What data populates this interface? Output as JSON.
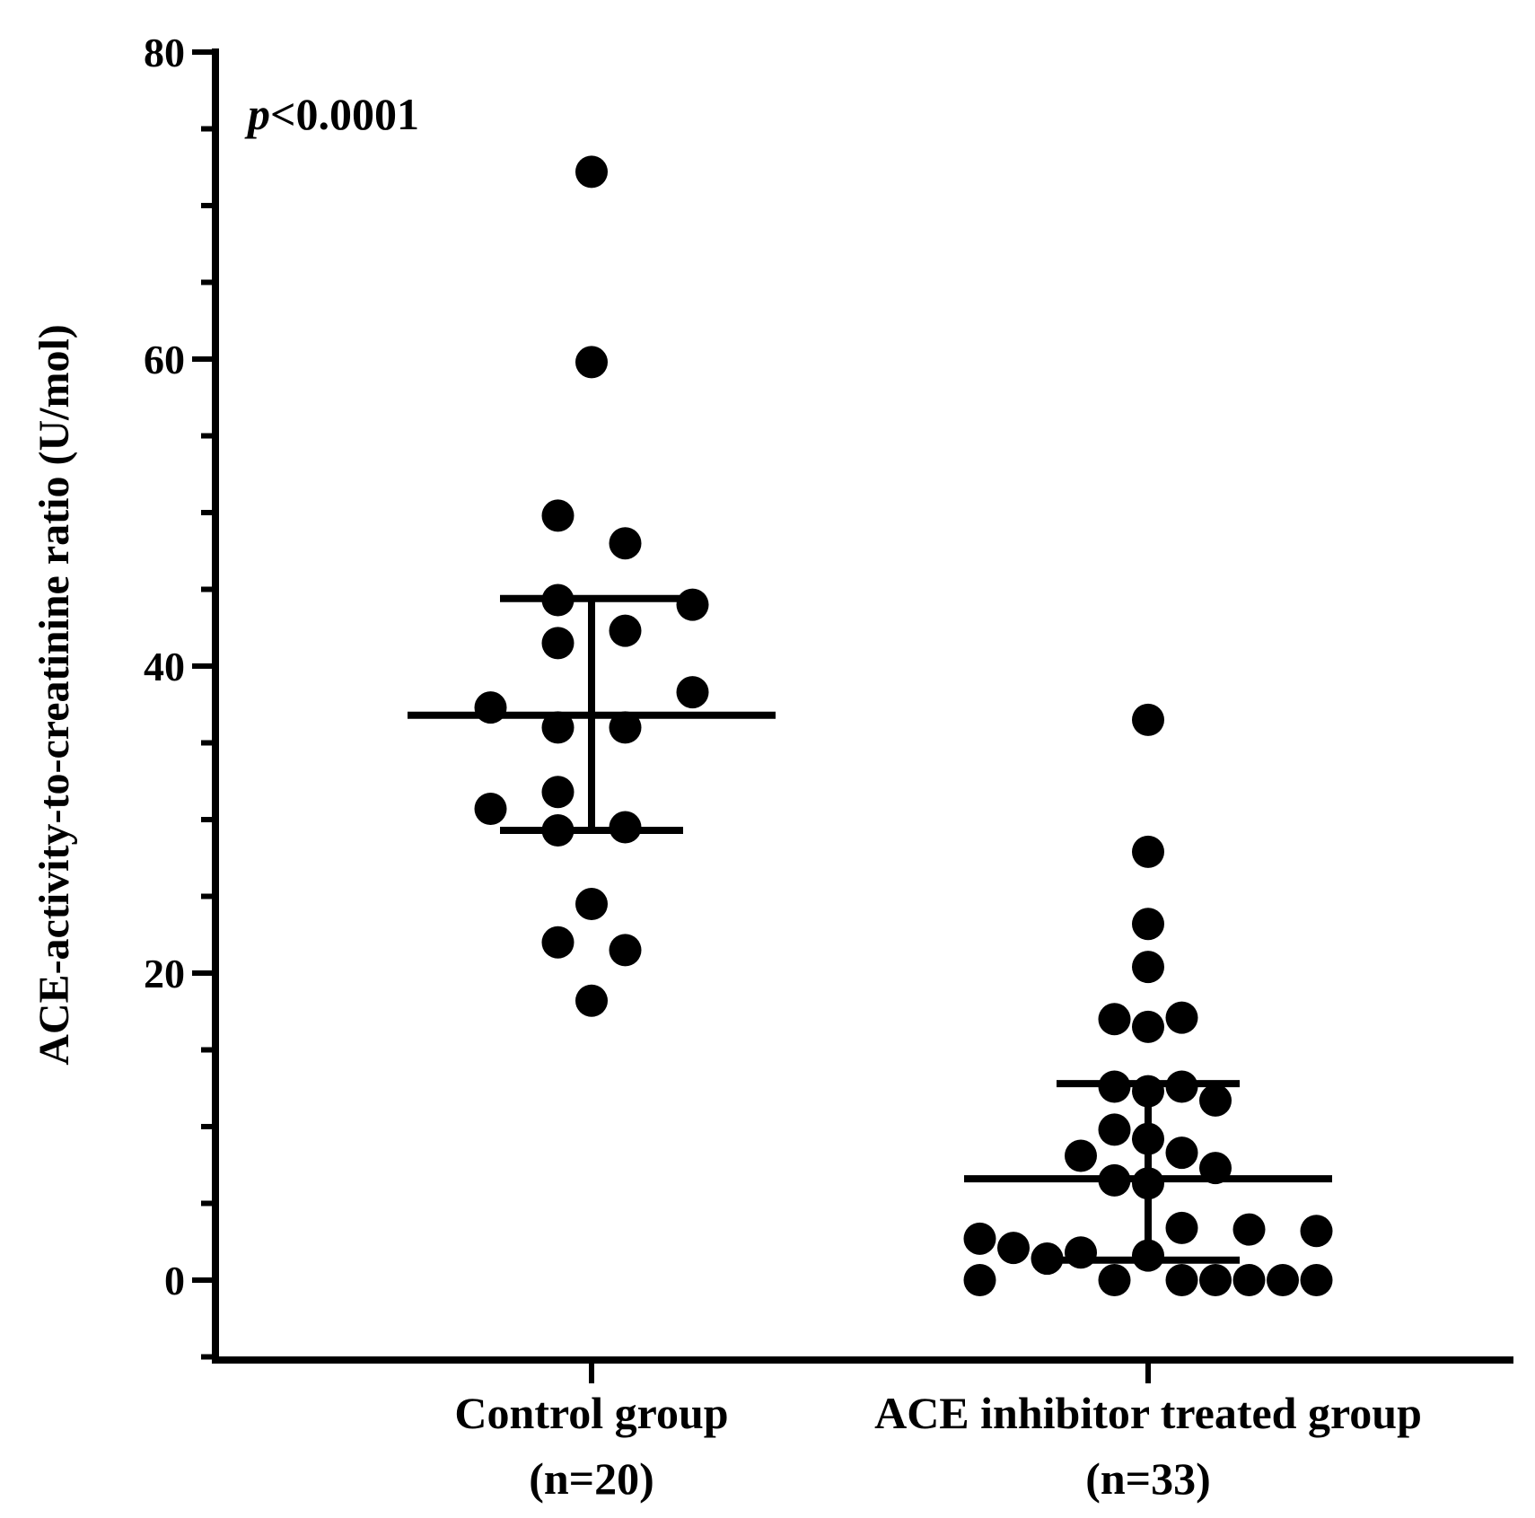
{
  "chart_data": {
    "type": "scatter",
    "title": "",
    "xlabel": "",
    "ylabel": "ACE-activity-to-creatinine ratio (U/mol)",
    "ylim": [
      -5,
      80
    ],
    "yticks": [
      0,
      20,
      40,
      60,
      80
    ],
    "annotation": {
      "italic_part": "p",
      "rest": "<0.0001"
    },
    "categories": [
      {
        "line1": "Control group",
        "line2": "(n=20)"
      },
      {
        "line1": "ACE inhibitor treated group",
        "line2": "(n=33)"
      }
    ],
    "series": [
      {
        "name": "Control group",
        "median": 36.8,
        "q1": 29.3,
        "q3": 44.4,
        "points": [
          {
            "v": 72.2,
            "off": 0
          },
          {
            "v": 59.8,
            "off": 0
          },
          {
            "v": 49.8,
            "off": -1
          },
          {
            "v": 48.0,
            "off": 1
          },
          {
            "v": 44.3,
            "off": -1
          },
          {
            "v": 44.0,
            "off": 3
          },
          {
            "v": 42.3,
            "off": 1
          },
          {
            "v": 41.5,
            "off": -1
          },
          {
            "v": 38.3,
            "off": 3
          },
          {
            "v": 37.3,
            "off": -3
          },
          {
            "v": 36.0,
            "off": -1
          },
          {
            "v": 36.0,
            "off": 1
          },
          {
            "v": 31.8,
            "off": -1
          },
          {
            "v": 30.7,
            "off": -3
          },
          {
            "v": 29.5,
            "off": 1
          },
          {
            "v": 29.3,
            "off": -1
          },
          {
            "v": 24.5,
            "off": 0
          },
          {
            "v": 22.0,
            "off": -1
          },
          {
            "v": 21.5,
            "off": 1
          },
          {
            "v": 18.2,
            "off": 0
          }
        ]
      },
      {
        "name": "ACE inhibitor treated group",
        "median": 6.6,
        "q1": 1.3,
        "q3": 12.8,
        "points": [
          {
            "v": 36.5,
            "off": 0
          },
          {
            "v": 27.9,
            "off": 0
          },
          {
            "v": 23.2,
            "off": 0
          },
          {
            "v": 20.4,
            "off": 0
          },
          {
            "v": 17.0,
            "off": -1
          },
          {
            "v": 17.1,
            "off": 1
          },
          {
            "v": 16.5,
            "off": 0
          },
          {
            "v": 12.6,
            "off": -1
          },
          {
            "v": 12.6,
            "off": 1
          },
          {
            "v": 12.3,
            "off": 0
          },
          {
            "v": 11.7,
            "off": 2
          },
          {
            "v": 9.8,
            "off": -1
          },
          {
            "v": 9.2,
            "off": 0
          },
          {
            "v": 8.3,
            "off": 1
          },
          {
            "v": 8.1,
            "off": -2
          },
          {
            "v": 7.3,
            "off": 2
          },
          {
            "v": 6.5,
            "off": -1
          },
          {
            "v": 6.3,
            "off": 0
          },
          {
            "v": 3.4,
            "off": 1
          },
          {
            "v": 3.3,
            "off": 3
          },
          {
            "v": 3.2,
            "off": 5
          },
          {
            "v": 2.7,
            "off": -5
          },
          {
            "v": 2.1,
            "off": -4
          },
          {
            "v": 1.8,
            "off": -2
          },
          {
            "v": 1.6,
            "off": 0
          },
          {
            "v": 1.4,
            "off": -3
          },
          {
            "v": 0,
            "off": -5
          },
          {
            "v": 0,
            "off": -1
          },
          {
            "v": 0,
            "off": 1
          },
          {
            "v": 0,
            "off": 2
          },
          {
            "v": 0,
            "off": 3
          },
          {
            "v": 0,
            "off": 4
          },
          {
            "v": 0,
            "off": 5
          }
        ]
      }
    ]
  }
}
